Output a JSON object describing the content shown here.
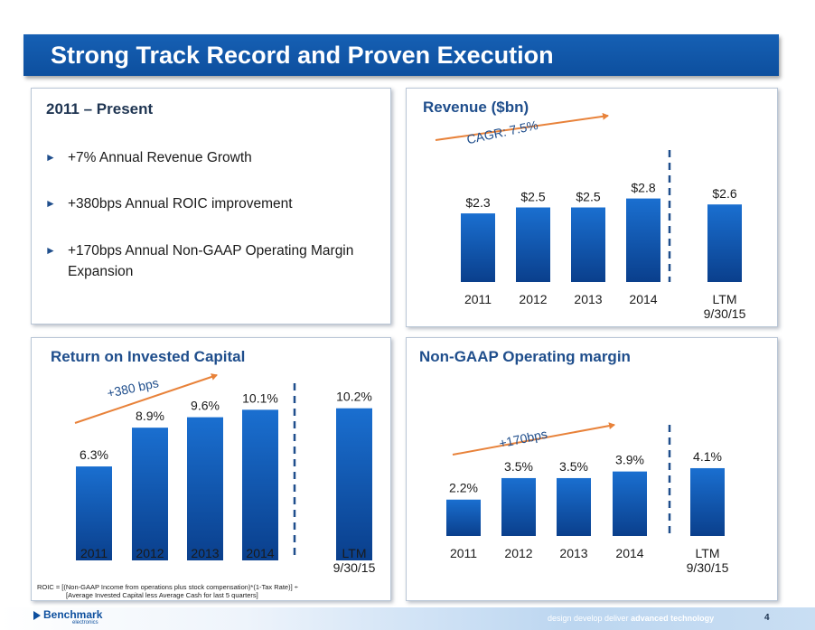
{
  "title": "Strong Track Record and Proven Execution",
  "summary": {
    "heading": "2011 – Present",
    "bullets": [
      "+7% Annual Revenue Growth",
      "+380bps Annual ROIC improvement",
      "+170bps Annual Non-GAAP Operating Margin Expansion"
    ]
  },
  "chart_data": [
    {
      "type": "bar",
      "title": "Revenue ($bn)",
      "categories": [
        "2011",
        "2012",
        "2013",
        "2014",
        "LTM\n9/30/15"
      ],
      "values": [
        2.3,
        2.5,
        2.5,
        2.8,
        2.6
      ],
      "data_labels": [
        "$2.3",
        "$2.5",
        "$2.5",
        "$2.8",
        "$2.6"
      ],
      "trend_label": "CAGR: 7.5%",
      "divider_before_last": true
    },
    {
      "type": "bar",
      "title": "Return on Invested Capital",
      "categories": [
        "2011",
        "2012",
        "2013",
        "2014",
        "LTM\n9/30/15"
      ],
      "values": [
        6.3,
        8.9,
        9.6,
        10.1,
        10.2
      ],
      "data_labels": [
        "6.3%",
        "8.9%",
        "9.6%",
        "10.1%",
        "10.2%"
      ],
      "trend_label": "+380 bps",
      "divider_before_last": true
    },
    {
      "type": "bar",
      "title": "Non-GAAP Operating margin",
      "categories": [
        "2011",
        "2012",
        "2013",
        "2014",
        "LTM\n9/30/15"
      ],
      "values": [
        2.2,
        3.5,
        3.5,
        3.9,
        4.1
      ],
      "data_labels": [
        "2.2%",
        "3.5%",
        "3.5%",
        "3.9%",
        "4.1%"
      ],
      "trend_label": "+170bps",
      "divider_before_last": true
    }
  ],
  "roic_note": {
    "line1": "ROIC = [(Non-GAAP Income from operations plus stock compensation)*(1-Tax   Rate)] ÷",
    "line2": "[Average Invested  Capital less Average  Cash for last 5 quarters]"
  },
  "footer": {
    "logo": "Benchmark",
    "logo_sub": "electronics",
    "tagline_prefix": "design develop deliver ",
    "tagline_bold": "advanced technology",
    "page_number": "4"
  },
  "colors": {
    "title_bar": "#0d4f9e",
    "bar_top": "#1a6fd0",
    "bar_bottom": "#0a3f8c",
    "trend_arrow": "#e8823a",
    "divider": "#1f4e8c"
  }
}
